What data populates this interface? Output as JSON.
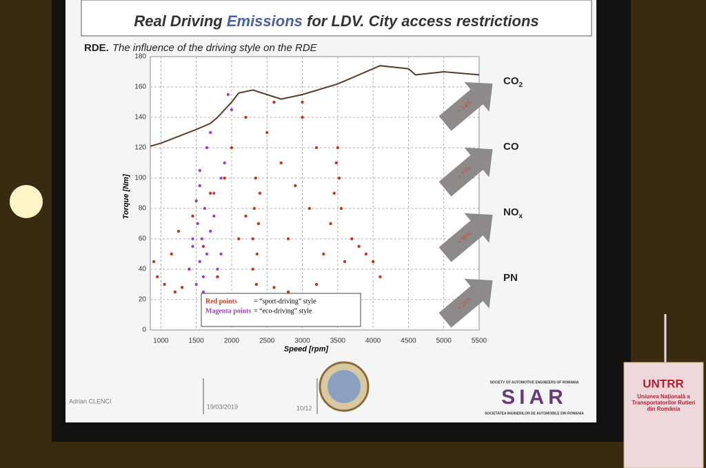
{
  "slide": {
    "title_parts": [
      "Real Driving ",
      "Emissions",
      " for LDV. City access restrictions"
    ],
    "subtitle_lead": "RDE.",
    "subtitle": "The influence of the driving style on the RDE",
    "legend_notes": [
      "= “sport-driving” style",
      "= “eco-driving” style"
    ],
    "emissions": [
      {
        "label": "CO",
        "sub": "2",
        "change": "+ 14%"
      },
      {
        "label": "CO",
        "sub": "",
        "change": "+ 15%"
      },
      {
        "label": "NO",
        "sub": "x",
        "change": "+ 98%"
      },
      {
        "label": "PN",
        "sub": "",
        "change": "+ 26%"
      }
    ],
    "footer": [
      "Adrian CLENCI",
      "19/03/2019",
      "10/12"
    ],
    "logo": {
      "top": "SOCIETY OF AUTOMOTIVE ENGINEERS OF ROMANIA",
      "name": "SIAR",
      "bottom": "SOCIETATEA INGINERILOR DE AUTOMOBILE DIN ROMANIA"
    },
    "banner": {
      "name": "UNTRR",
      "text": "Uniunea Naţională a Transportatorilor Rutieri din România"
    }
  },
  "chart_data": {
    "type": "scatter",
    "x_label": "Speed [rpm]",
    "y_label": "Torque [Nm]",
    "xlim": [
      850,
      5500
    ],
    "ylim": [
      0,
      180
    ],
    "xticks": [
      1000,
      1500,
      2000,
      2500,
      3000,
      3500,
      4000,
      4500,
      5000,
      5500
    ],
    "yticks": [
      0,
      20,
      40,
      60,
      80,
      100,
      120,
      140,
      160,
      180
    ],
    "grid": true,
    "series": [
      {
        "name": "Red points",
        "color": "#c0391b",
        "x": [
          900,
          950,
          1050,
          1150,
          1250,
          1300,
          1400,
          1450,
          1600,
          1700,
          1800,
          1900,
          2000,
          2100,
          2200,
          2300,
          2300,
          2320,
          2340,
          2350,
          2360,
          2380,
          2400,
          2500,
          2600,
          2700,
          2800,
          2900,
          3000,
          3100,
          3200,
          3300,
          3400,
          3450,
          3480,
          3500,
          3520,
          3550,
          3600,
          3700,
          3800,
          3900,
          4000,
          4100,
          2800,
          3200,
          2600,
          1200,
          3000,
          2200
        ],
        "values": [
          45,
          35,
          30,
          50,
          65,
          28,
          40,
          75,
          55,
          90,
          35,
          100,
          120,
          60,
          140,
          40,
          60,
          80,
          100,
          30,
          50,
          70,
          90,
          130,
          150,
          110,
          60,
          95,
          140,
          80,
          120,
          50,
          70,
          90,
          110,
          120,
          100,
          80,
          45,
          60,
          55,
          50,
          45,
          35,
          25,
          30,
          28,
          25,
          150,
          75
        ]
      },
      {
        "name": "Magenta points",
        "color": "#a040c8",
        "x": [
          1400,
          1450,
          1500,
          1520,
          1550,
          1580,
          1600,
          1620,
          1650,
          1700,
          1750,
          1800,
          1850,
          1900,
          1500,
          1600,
          1700,
          1550,
          1650,
          2000,
          1950,
          1450,
          1750,
          1850,
          1550
        ],
        "values": [
          40,
          55,
          30,
          70,
          45,
          60,
          35,
          80,
          50,
          65,
          90,
          40,
          100,
          110,
          85,
          25,
          130,
          95,
          120,
          145,
          155,
          60,
          75,
          50,
          105
        ]
      },
      {
        "type": "line",
        "color": "#5a3a2a",
        "x": [
          850,
          1000,
          1500,
          1700,
          1800,
          2000,
          2100,
          2300,
          2500,
          2700,
          3000,
          3500,
          4000,
          4100,
          4500,
          4600,
          5000,
          5500
        ],
        "values": [
          121,
          123,
          132,
          136,
          140,
          150,
          156,
          158,
          155,
          152,
          155,
          162,
          172,
          174,
          172,
          168,
          170,
          168
        ]
      }
    ]
  }
}
